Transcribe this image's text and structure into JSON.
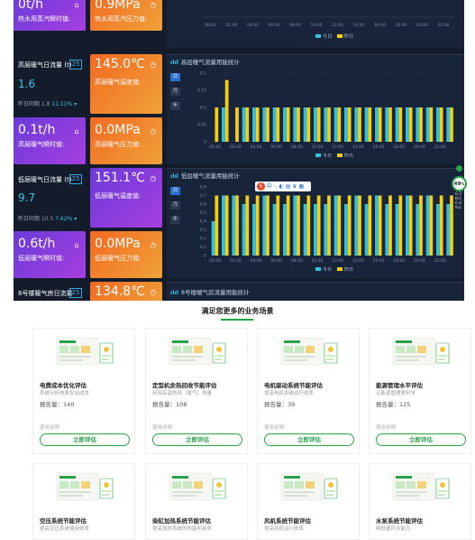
{
  "dashboard": {
    "top_tiles": [
      {
        "value": "0t/h",
        "label": "热水用蒸汽瞬时值:",
        "icon": "building-icon"
      },
      {
        "value": "0.9MPa",
        "label": "热水用蒸汽压力值:",
        "icon": "gauge-icon"
      }
    ],
    "top_legend": [
      "今日",
      "昨日"
    ],
    "top_xticks": [
      "00:00",
      "02:00",
      "04:00",
      "06:00",
      "08:00",
      "10:00",
      "12:00",
      "14:00",
      "16:00",
      "18:00",
      "20:00",
      "22:00"
    ],
    "sections": [
      {
        "row_label": "高层暖气日流量 (t)",
        "row_badge": "25",
        "row_value": "1.6",
        "row_sub_prefix": "昨日同期 1.8",
        "row_sub_change": "11.11%",
        "temp_value": "145.0℃",
        "temp_label": "高层暖气温度值:",
        "flow_value": "0.1t/h",
        "flow_label": "高层暖气瞬时值:",
        "press_value": "0.0MPa",
        "press_label": "高层暖气压力值:",
        "chart_title": "高层暖气流量用能统计",
        "chips": [
          "日",
          "月",
          "年"
        ]
      },
      {
        "row_label": "低层暖气日流量 (t)",
        "row_badge": "25",
        "row_value": "9.7",
        "row_sub_prefix": "昨日同期 10.5",
        "row_sub_change": "7.62%",
        "temp_value": "151.1℃",
        "temp_label": "低层暖气温度值:",
        "flow_value": "0.6t/h",
        "flow_label": "低层暖气瞬时值:",
        "press_value": "0.0MPa",
        "press_label": "低层暖气压力值:",
        "chart_title": "低层暖气流量用能统计",
        "chips": [
          "日",
          "月",
          "年"
        ]
      },
      {
        "row_label": "8号楼暖气房日流量",
        "row_badge": "25",
        "temp_value": "134.8℃",
        "chart_title": "8号楼暖气房流量用能统计"
      }
    ],
    "floating_toolbar": {
      "logo": "S",
      "text": "中 ·, ◐ ▤ ♛ ▦"
    },
    "right_widget": {
      "value": "49",
      "unit": "%",
      "lines": [
        "0.2",
        "K/s",
        "0.4",
        "K/s"
      ]
    }
  },
  "chart_data": [
    {
      "type": "bar",
      "title": "高层暖气流量用能统计",
      "yticks": [
        "0.2",
        "0.15",
        "0.1",
        "0.05",
        "0"
      ],
      "ylim": [
        0,
        0.2
      ],
      "categories": [
        "00:00",
        "01:00",
        "02:00",
        "03:00",
        "04:00",
        "05:00",
        "06:00",
        "07:00",
        "08:00",
        "09:00",
        "10:00",
        "11:00",
        "12:00",
        "13:00",
        "14:00",
        "15:00",
        "16:00",
        "17:00",
        "18:00",
        "19:00",
        "20:00",
        "21:00",
        "22:00",
        "23:00"
      ],
      "xticks": [
        "00:00",
        "02:00",
        "04:00",
        "06:00",
        "08:00",
        "10:00",
        "12:00",
        "14:00",
        "16:00",
        "18:00",
        "20:00",
        "22:00"
      ],
      "series": [
        {
          "name": "今日",
          "color": "#33c0dc",
          "values": [
            0,
            0.1,
            0,
            0.1,
            0.1,
            0.1,
            0.1,
            0.1,
            0.1,
            0.1,
            0.1,
            0.1,
            0.1,
            0.1,
            0.1,
            0.1,
            0.1,
            0.1,
            0.1,
            0.1,
            0.1,
            0.1,
            0.1,
            0.1
          ]
        },
        {
          "name": "昨日",
          "color": "#f5cf12",
          "values": [
            0.1,
            0.18,
            0.1,
            0.1,
            0.1,
            0.1,
            0.1,
            0.1,
            0.1,
            0.1,
            0.1,
            0.1,
            0.1,
            0.1,
            0.1,
            0.1,
            0.1,
            0.1,
            0.1,
            0.1,
            0.1,
            0.1,
            0.1,
            0.1
          ]
        }
      ]
    },
    {
      "type": "bar",
      "title": "低层暖气流量用能统计",
      "yticks": [
        "0.8",
        "0.7",
        "0.6",
        "0.5",
        "0.4",
        "0.3",
        "0.2",
        "0.1",
        "0"
      ],
      "ylim": [
        0,
        0.8
      ],
      "categories": [
        "00:00",
        "01:00",
        "02:00",
        "03:00",
        "04:00",
        "05:00",
        "06:00",
        "07:00",
        "08:00",
        "09:00",
        "10:00",
        "11:00",
        "12:00",
        "13:00",
        "14:00",
        "15:00",
        "16:00",
        "17:00",
        "18:00",
        "19:00",
        "20:00",
        "21:00",
        "22:00",
        "23:00"
      ],
      "xticks": [
        "00:00",
        "02:00",
        "04:00",
        "06:00",
        "08:00",
        "10:00",
        "12:00",
        "14:00",
        "16:00",
        "18:00",
        "20:00",
        "22:00"
      ],
      "series": [
        {
          "name": "今日",
          "color": "#33c0dc",
          "values": [
            0.4,
            0.7,
            0.7,
            0.6,
            0.6,
            0.7,
            0.6,
            0.6,
            0.7,
            0.6,
            0.6,
            0.6,
            0.7,
            0.6,
            0.7,
            0.6,
            0.7,
            0.6,
            0.6,
            0.7,
            0.6,
            0.7,
            0.6,
            0.6
          ]
        },
        {
          "name": "昨日",
          "color": "#f5cf12",
          "values": [
            0.7,
            0.7,
            0.7,
            0.7,
            0.7,
            0.7,
            0.7,
            0.7,
            0.7,
            0.7,
            0.7,
            0.7,
            0.7,
            0.7,
            0.7,
            0.7,
            0.7,
            0.7,
            0.7,
            0.7,
            0.7,
            0.7,
            0.7,
            0.7
          ]
        }
      ]
    }
  ],
  "services": {
    "title": "满足您更多的业务场景",
    "cards": [
      {
        "name": "电费成本优化评估",
        "desc": "系统分析电费支出成本",
        "count": "报告量：140",
        "hint": "使用说明",
        "button": "立即评估"
      },
      {
        "name": "定型机余热回收节能评估",
        "desc": "利用高温热风（尾气）热量",
        "count": "报告量：108",
        "hint": "使用说明",
        "button": "立即评估"
      },
      {
        "name": "电机驱动系统节能评估",
        "desc": "提高电机系统运行效率",
        "count": "报告量：39",
        "hint": "使用说明",
        "button": "立即评估"
      },
      {
        "name": "能源管理水平评估",
        "desc": "让能源管理更科学",
        "count": "报告量：125",
        "hint": "使用说明",
        "button": "立即评估"
      },
      {
        "name": "空压系统节能评估",
        "desc": "提高空压系统使用效率",
        "count": "",
        "hint": "",
        "button": ""
      },
      {
        "name": "染缸加热系统节能评估",
        "desc": "提高加热系统的热能利用率",
        "count": "",
        "hint": "",
        "button": ""
      },
      {
        "name": "风机系统节能评估",
        "desc": "提高风机运行效率",
        "count": "",
        "hint": "",
        "button": ""
      },
      {
        "name": "水泵系统节能评估",
        "desc": "降低循环水能力",
        "count": "",
        "hint": "",
        "button": ""
      }
    ]
  }
}
